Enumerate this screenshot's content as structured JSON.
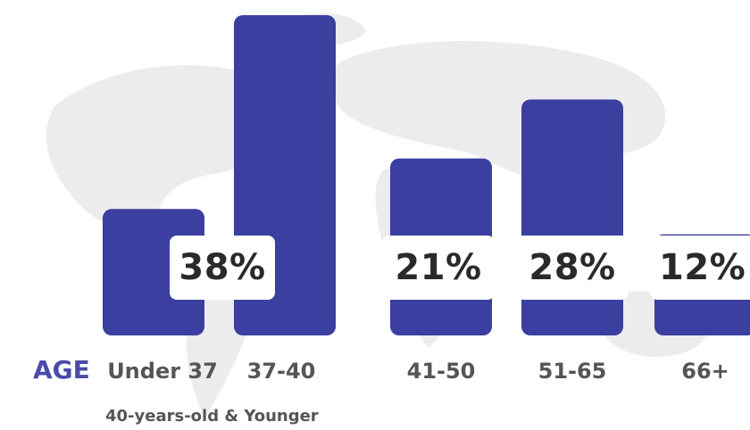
{
  "chart_data": {
    "type": "bar",
    "categories": [
      "Under 37",
      "37-40",
      "41-50",
      "51-65",
      "66+"
    ],
    "values": [
      15,
      38,
      21,
      28,
      12
    ],
    "labels": {
      "group_1": "38%",
      "group_2": "21%",
      "group_3": "28%",
      "group_4": "12%"
    },
    "axis_label": "AGE",
    "group_label": "40-years-old & Younger",
    "title": "",
    "xlabel": "",
    "ylabel": "",
    "ylim": [
      0,
      38
    ],
    "grid": false,
    "legend": "none"
  },
  "colors": {
    "bar": "#3a3fa0",
    "accent_text": "#4a4aaa",
    "label_text": "#555555",
    "map": "#e9e9e9"
  }
}
